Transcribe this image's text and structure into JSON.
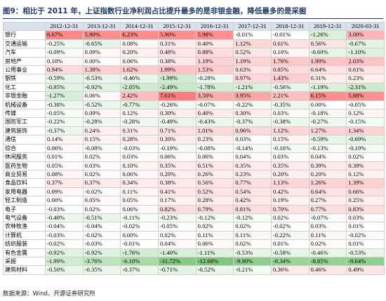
{
  "title": "图9：相比于 2011 年，上证指数行业净利润占比提升最多的是非银金融，降低最多的是采掘",
  "table": {
    "header": [
      "2012-12-31",
      "2013-12-31",
      "2014-12-31",
      "2015-12-31",
      "2016-12-31",
      "2017-12-31",
      "2018-12-31",
      "2019-12-31",
      "2020-03-31"
    ],
    "rows": [
      [
        "银行",
        "6.67%",
        "5.90%",
        "6.23%",
        "5.90%",
        "5.98%",
        "-0.01%",
        "-0.01%",
        "-1.26%",
        "3.00%"
      ],
      [
        "交通运输",
        "-0.25%",
        "-0.65%",
        "0.08%",
        "0.31%",
        "0.40%",
        "1.12%",
        "0.61%",
        "0.56%",
        "-0.67%"
      ],
      [
        "汽车",
        "-0.09%",
        "0.09%",
        "0.20%",
        "0.48%",
        "0.88%",
        "0.52%",
        "0.10%",
        "-0.60%",
        "-1.10%"
      ],
      [
        "房地产",
        "0.10%",
        "0.00%",
        "0.06%",
        "0.38%",
        "1.19%",
        "1.19%",
        "1.76%",
        "1.99%",
        "2.03%"
      ],
      [
        "公用事业",
        "0.94%",
        "1.38%",
        "1.62%",
        "1.99%",
        "1.53%",
        "0.63%",
        "0.85%",
        "0.64%",
        "0.61%"
      ],
      [
        "钢铁",
        "-0.59%",
        "-0.53%",
        "-0.46%",
        "-1.99%",
        "-0.28%",
        "0.97%",
        "1.43%",
        "0.31%",
        "0.23%"
      ],
      [
        "化工",
        "-0.95%",
        "-0.92%",
        "-2.05%",
        "-2.49%",
        "-1.78%",
        "-1.21%",
        "-0.56%",
        "-1.19%",
        "-2.31%"
      ],
      [
        "非银金融",
        "-1.27%",
        "0.06%",
        "2.42%",
        "7.61%",
        "3.50%",
        "3.95%",
        "2.21%",
        "6.15%",
        "5.88%"
      ],
      [
        "机械设备",
        "-0.38%",
        "-0.52%",
        "-0.77%",
        "-0.26%",
        "-0.07%",
        "-0.22%",
        "-0.35%",
        "0.00%",
        "-0.05%"
      ],
      [
        "传媒",
        "-0.05%",
        "0.09%",
        "0.12%",
        "0.30%",
        "0.40%",
        "0.30%",
        "0.03%",
        "-0.18%",
        "0.12%"
      ],
      [
        "国防军工",
        "-0.22%",
        "-0.28%",
        "-0.28%",
        "-0.49%",
        "-0.43%",
        "-0.37%",
        "-0.38%",
        "-0.27%",
        "-0.15%"
      ],
      [
        "建筑装饰",
        "-0.37%",
        "0.24%",
        "0.31%",
        "0.71%",
        "1.01%",
        "0.96%",
        "1.12%",
        "1.27%",
        "1.34%"
      ],
      [
        "通信",
        "0.14%",
        "0.15%",
        "0.28%",
        "0.30%",
        "0.23%",
        "0.03%",
        "0.15%",
        "-0.59%",
        "-0.69%"
      ],
      [
        "综合",
        "0.06%",
        "-0.08%",
        "-0.03%",
        "-0.19%",
        "-0.08%",
        "-0.14%",
        "-0.16%",
        "-0.13%",
        "-0.19%"
      ],
      [
        "休闲服务",
        "0.01%",
        "0.02%",
        "0.03%",
        "0.06%",
        "0.06%",
        "0.04%",
        "0.03%",
        "0.04%",
        "0.02%"
      ],
      [
        "医药生物",
        "0.05%",
        "0.03%",
        "0.10%",
        "0.35%",
        "0.51%",
        "0.35%",
        "0.35%",
        "0.39%",
        "0.39%"
      ],
      [
        "商业贸易",
        "0.08%",
        "0.02%",
        "0.06%",
        "0.20%",
        "0.26%",
        "0.23%",
        "0.20%",
        "0.20%",
        "0.12%"
      ],
      [
        "食品饮料",
        "0.37%",
        "0.37%",
        "0.34%",
        "0.38%",
        "0.56%",
        "0.77%",
        "1.13%",
        "1.26%",
        "1.39%"
      ],
      [
        "家用电器",
        "0.09%",
        "-0.02%",
        "0.11%",
        "0.41%",
        "0.52%",
        "0.54%",
        "0.42%",
        "0.64%",
        "0.66%"
      ],
      [
        "轻工制造",
        "0.00%",
        "0.05%",
        "0.05%",
        "0.17%",
        "0.28%",
        "0.42%",
        "0.19%",
        "0.27%",
        "0.25%"
      ],
      [
        "电子",
        "-0.03%",
        "0.02%",
        "0.06%",
        "0.82%",
        "0.79%",
        "0.81%",
        "0.70%",
        "0.77%",
        "0.83%"
      ],
      [
        "电气设备",
        "-0.40%",
        "-0.51%",
        "-0.11%",
        "-0.23%",
        "-0.12%",
        "-0.12%",
        "0.02%",
        "-0.07%",
        "0.03%"
      ],
      [
        "农林牧渔",
        "-0.04%",
        "-0.04%",
        "-0.02%",
        "-0.05%",
        "0.02%",
        "0.02%",
        "-0.02%",
        "0.03%",
        "0.01%"
      ],
      [
        "计算机",
        "-0.03%",
        "-0.02%",
        "0.00%",
        "0.02%",
        "0.11%",
        "0.11%",
        "-0.22%",
        "0.11%",
        "-0.02%"
      ],
      [
        "纺织服装",
        "-0.02%",
        "-0.03%",
        "-0.01%",
        "0.04%",
        "0.06%",
        "0.02%",
        "0.01%",
        "0.02%",
        "0.01%"
      ],
      [
        "有色金属",
        "-0.92%",
        "-0.92%",
        "-1.76%",
        "-1.40%",
        "-1.11%",
        "-0.53%",
        "-0.58%",
        "-0.46%",
        "-0.53%"
      ],
      [
        "采掘",
        "-1.99%",
        "-3.76%",
        "-6.10%",
        "-11.72%",
        "-12.68%",
        "-9.90%",
        "-8.34%",
        "-8.85%",
        "-9.64%"
      ],
      [
        "建筑材料",
        "-0.50%",
        "-0.35%",
        "-0.37%",
        "-0.71%",
        "-0.52%",
        "-0.21%",
        "0.36%",
        "0.46%",
        "0.49%"
      ]
    ]
  },
  "source": "数据来源：Wind、开源证券研究所"
}
